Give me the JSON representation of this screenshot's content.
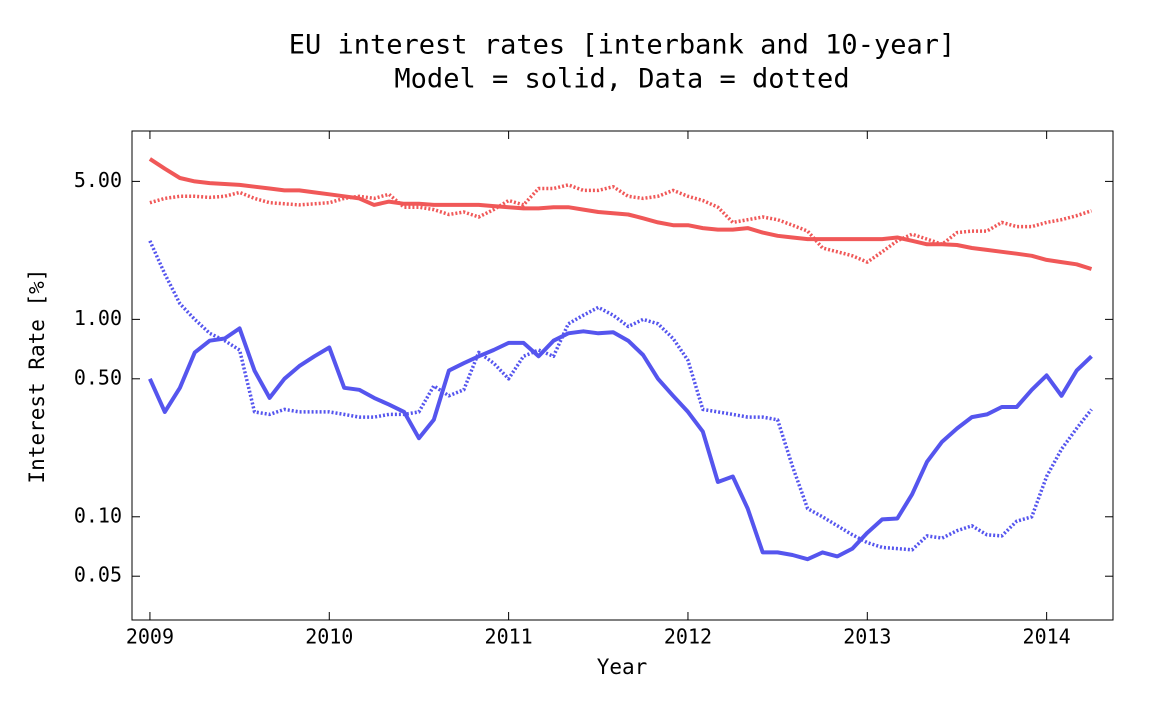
{
  "chart_data": {
    "type": "line",
    "title": [
      "EU interest rates [interbank and 10-year]",
      "Model = solid, Data = dotted"
    ],
    "xlabel": "Year",
    "ylabel": "Interest Rate [%]",
    "log_y": true,
    "xlim": [
      2008.9,
      2014.37
    ],
    "ylim": [
      0.03,
      9
    ],
    "xticks": [
      2009,
      2010,
      2011,
      2012,
      2013,
      2014
    ],
    "yticks": [
      0.05,
      {
        "value": 0.1,
        "label": "0.10"
      },
      {
        "value": 0.5,
        "label": "0.50"
      },
      {
        "value": 1,
        "label": "1.00"
      },
      {
        "value": 5,
        "label": "5.00"
      }
    ],
    "x": [
      2009,
      2009.083,
      2009.167,
      2009.25,
      2009.333,
      2009.417,
      2009.5,
      2009.583,
      2009.667,
      2009.75,
      2009.833,
      2009.917,
      2010,
      2010.083,
      2010.167,
      2010.25,
      2010.333,
      2010.417,
      2010.5,
      2010.583,
      2010.667,
      2010.75,
      2010.833,
      2010.917,
      2011,
      2011.083,
      2011.167,
      2011.25,
      2011.333,
      2011.417,
      2011.5,
      2011.583,
      2011.667,
      2011.75,
      2011.833,
      2011.917,
      2012,
      2012.083,
      2012.167,
      2012.25,
      2012.333,
      2012.417,
      2012.5,
      2012.583,
      2012.667,
      2012.75,
      2012.833,
      2012.917,
      2013,
      2013.083,
      2013.167,
      2013.25,
      2013.333,
      2013.417,
      2013.5,
      2013.583,
      2013.667,
      2013.75,
      2013.833,
      2013.917,
      2014,
      2014.083,
      2014.167,
      2014.25
    ],
    "series": [
      {
        "color": "#f05858",
        "dotted": false,
        "values": [
          6.5,
          5.8,
          5.2,
          5.0,
          4.9,
          4.85,
          4.8,
          4.7,
          4.6,
          4.5,
          4.5,
          4.4,
          4.3,
          4.2,
          4.1,
          3.8,
          3.95,
          3.85,
          3.85,
          3.8,
          3.8,
          3.8,
          3.8,
          3.75,
          3.7,
          3.65,
          3.65,
          3.7,
          3.7,
          3.6,
          3.5,
          3.45,
          3.4,
          3.25,
          3.1,
          3.0,
          3.0,
          2.9,
          2.85,
          2.85,
          2.9,
          2.75,
          2.65,
          2.6,
          2.55,
          2.55,
          2.55,
          2.55,
          2.55,
          2.55,
          2.6,
          2.5,
          2.4,
          2.4,
          2.38,
          2.3,
          2.25,
          2.2,
          2.15,
          2.1,
          2.0,
          1.95,
          1.9,
          1.8
        ]
      },
      {
        "color": "#f05858",
        "dotted": true,
        "values": [
          3.9,
          4.1,
          4.2,
          4.2,
          4.15,
          4.2,
          4.4,
          4.1,
          3.9,
          3.85,
          3.8,
          3.85,
          3.9,
          4.1,
          4.2,
          4.1,
          4.3,
          3.7,
          3.7,
          3.6,
          3.4,
          3.5,
          3.3,
          3.6,
          4.0,
          3.8,
          4.6,
          4.6,
          4.8,
          4.5,
          4.5,
          4.7,
          4.2,
          4.1,
          4.2,
          4.5,
          4.2,
          4.0,
          3.7,
          3.1,
          3.2,
          3.3,
          3.2,
          3.0,
          2.8,
          2.3,
          2.2,
          2.1,
          1.95,
          2.2,
          2.5,
          2.7,
          2.55,
          2.4,
          2.75,
          2.8,
          2.8,
          3.1,
          2.95,
          2.95,
          3.1,
          3.2,
          3.35,
          3.55
        ]
      },
      {
        "color": "#5555ee",
        "dotted": false,
        "values": [
          0.5,
          0.34,
          0.45,
          0.68,
          0.78,
          0.8,
          0.9,
          0.55,
          0.4,
          0.5,
          0.58,
          0.65,
          0.72,
          0.45,
          0.44,
          0.4,
          0.37,
          0.34,
          0.25,
          0.31,
          0.55,
          0.6,
          0.65,
          0.7,
          0.76,
          0.76,
          0.65,
          0.78,
          0.85,
          0.87,
          0.85,
          0.86,
          0.78,
          0.66,
          0.5,
          0.41,
          0.34,
          0.27,
          0.15,
          0.16,
          0.11,
          0.066,
          0.066,
          0.064,
          0.061,
          0.066,
          0.063,
          0.069,
          0.083,
          0.097,
          0.098,
          0.13,
          0.19,
          0.24,
          0.28,
          0.32,
          0.33,
          0.36,
          0.36,
          0.44,
          0.52,
          0.41,
          0.55,
          0.65
        ]
      },
      {
        "color": "#5555ee",
        "dotted": true,
        "values": [
          2.5,
          1.7,
          1.2,
          1.0,
          0.85,
          0.78,
          0.7,
          0.34,
          0.33,
          0.35,
          0.34,
          0.34,
          0.34,
          0.33,
          0.32,
          0.32,
          0.33,
          0.33,
          0.34,
          0.46,
          0.41,
          0.44,
          0.68,
          0.6,
          0.5,
          0.65,
          0.7,
          0.65,
          0.95,
          1.05,
          1.15,
          1.05,
          0.92,
          1.0,
          0.95,
          0.8,
          0.62,
          0.35,
          0.34,
          0.33,
          0.32,
          0.32,
          0.31,
          0.18,
          0.11,
          0.1,
          0.09,
          0.081,
          0.074,
          0.07,
          0.069,
          0.068,
          0.08,
          0.078,
          0.085,
          0.09,
          0.081,
          0.08,
          0.095,
          0.1,
          0.16,
          0.22,
          0.28,
          0.35
        ]
      }
    ]
  }
}
